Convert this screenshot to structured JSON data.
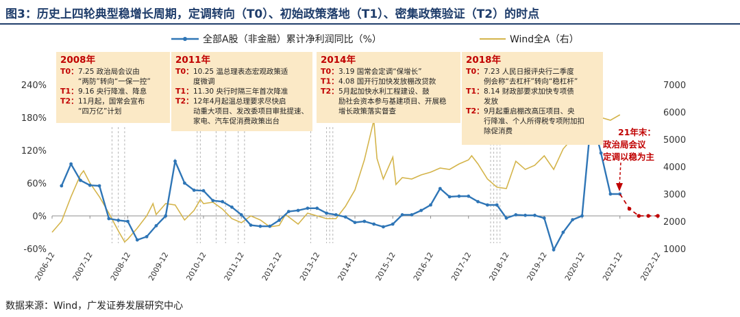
{
  "header": {
    "title": "图3：历史上四轮典型稳增长周期，定调转向（T0）、初始政策落地（T1）、密集政策验证（T2）的时点"
  },
  "footer": {
    "source": "数据来源：Wind，广发证券发展研究中心"
  },
  "colors": {
    "series_profit": "#2e75b6",
    "series_index": "#d4b44a",
    "annotation_bg": "#fbe9c6",
    "annotation_year": "#c00000",
    "forecast": "#c00000",
    "title": "#1f3d6b"
  },
  "chart_data": {
    "type": "line",
    "legend_position": "top",
    "grid": false,
    "x_range": [
      "2006-12",
      "2022-12"
    ],
    "x_ticks": [
      "2006-12",
      "2007-12",
      "2008-12",
      "2009-12",
      "2010-12",
      "2011-12",
      "2012-12",
      "2013-12",
      "2014-12",
      "2015-12",
      "2016-12",
      "2017-12",
      "2018-12",
      "2019-12",
      "2020-12",
      "2021-12",
      "2022-12"
    ],
    "y_left": {
      "min": -60,
      "max": 240,
      "ticks": [
        -60,
        0,
        60,
        120,
        180,
        240
      ],
      "unit": "%"
    },
    "y_right": {
      "min": 1000,
      "max": 7000,
      "ticks": [
        1000,
        2000,
        3000,
        4000,
        5000,
        6000,
        7000
      ]
    },
    "series": [
      {
        "name": "全部A股（非金融）累计净利润同比（%）",
        "axis": "left",
        "points": [
          [
            "2007-03",
            55
          ],
          [
            "2007-06",
            95
          ],
          [
            "2007-09",
            65
          ],
          [
            "2007-12",
            56
          ],
          [
            "2008-03",
            55
          ],
          [
            "2008-06",
            -5
          ],
          [
            "2008-09",
            -8
          ],
          [
            "2008-12",
            -10
          ],
          [
            "2009-03",
            -44
          ],
          [
            "2009-06",
            -38
          ],
          [
            "2009-09",
            -18
          ],
          [
            "2009-12",
            0
          ],
          [
            "2010-03",
            100
          ],
          [
            "2010-06",
            60
          ],
          [
            "2010-09",
            47
          ],
          [
            "2010-12",
            46
          ],
          [
            "2011-03",
            28
          ],
          [
            "2011-06",
            26
          ],
          [
            "2011-09",
            16
          ],
          [
            "2011-12",
            2
          ],
          [
            "2012-03",
            -17
          ],
          [
            "2012-06",
            -19
          ],
          [
            "2012-09",
            -19
          ],
          [
            "2012-12",
            -8
          ],
          [
            "2013-03",
            8
          ],
          [
            "2013-06",
            10
          ],
          [
            "2013-09",
            14
          ],
          [
            "2013-12",
            14
          ],
          [
            "2014-03",
            5
          ],
          [
            "2014-06",
            2
          ],
          [
            "2014-09",
            -2
          ],
          [
            "2014-12",
            -12
          ],
          [
            "2015-03",
            -10
          ],
          [
            "2015-06",
            -15
          ],
          [
            "2015-09",
            -20
          ],
          [
            "2015-12",
            -15
          ],
          [
            "2016-03",
            2
          ],
          [
            "2016-06",
            2
          ],
          [
            "2016-09",
            10
          ],
          [
            "2016-12",
            20
          ],
          [
            "2017-03",
            50
          ],
          [
            "2017-06",
            35
          ],
          [
            "2017-09",
            36
          ],
          [
            "2017-12",
            36
          ],
          [
            "2018-03",
            26
          ],
          [
            "2018-06",
            20
          ],
          [
            "2018-09",
            20
          ],
          [
            "2018-12",
            -4
          ],
          [
            "2019-03",
            2
          ],
          [
            "2019-06",
            1
          ],
          [
            "2019-09",
            1
          ],
          [
            "2019-12",
            -4
          ],
          [
            "2020-03",
            -62
          ],
          [
            "2020-06",
            -30
          ],
          [
            "2020-09",
            -7
          ],
          [
            "2020-12",
            0
          ],
          [
            "2021-03",
            185
          ],
          [
            "2021-06",
            115
          ],
          [
            "2021-09",
            40
          ],
          [
            "2021-12",
            40
          ]
        ]
      },
      {
        "name": "Wind全A（右）",
        "axis": "right",
        "points": [
          [
            "2006-12",
            1600
          ],
          [
            "2007-03",
            2000
          ],
          [
            "2007-06",
            2900
          ],
          [
            "2007-09",
            3700
          ],
          [
            "2007-10",
            3850
          ],
          [
            "2007-12",
            3400
          ],
          [
            "2008-03",
            2900
          ],
          [
            "2008-06",
            2300
          ],
          [
            "2008-09",
            1650
          ],
          [
            "2008-11",
            1250
          ],
          [
            "2008-12",
            1350
          ],
          [
            "2009-03",
            1750
          ],
          [
            "2009-06",
            2200
          ],
          [
            "2009-08",
            2650
          ],
          [
            "2009-09",
            2250
          ],
          [
            "2009-12",
            2650
          ],
          [
            "2010-03",
            2600
          ],
          [
            "2010-06",
            2050
          ],
          [
            "2010-09",
            2400
          ],
          [
            "2010-11",
            2800
          ],
          [
            "2010-12",
            2650
          ],
          [
            "2011-03",
            2700
          ],
          [
            "2011-06",
            2450
          ],
          [
            "2011-09",
            2100
          ],
          [
            "2011-12",
            1950
          ],
          [
            "2012-03",
            2200
          ],
          [
            "2012-06",
            2050
          ],
          [
            "2012-09",
            1800
          ],
          [
            "2012-12",
            1850
          ],
          [
            "2013-02",
            2250
          ],
          [
            "2013-06",
            1900
          ],
          [
            "2013-09",
            2300
          ],
          [
            "2013-12",
            2200
          ],
          [
            "2014-03",
            2100
          ],
          [
            "2014-06",
            2100
          ],
          [
            "2014-09",
            2550
          ],
          [
            "2014-12",
            3150
          ],
          [
            "2015-03",
            4250
          ],
          [
            "2015-06",
            5700
          ],
          [
            "2015-07",
            4300
          ],
          [
            "2015-09",
            3550
          ],
          [
            "2015-12",
            4350
          ],
          [
            "2016-01",
            3350
          ],
          [
            "2016-03",
            3600
          ],
          [
            "2016-06",
            3550
          ],
          [
            "2016-09",
            3700
          ],
          [
            "2016-12",
            3800
          ],
          [
            "2017-03",
            3950
          ],
          [
            "2017-06",
            3900
          ],
          [
            "2017-09",
            4100
          ],
          [
            "2017-12",
            4250
          ],
          [
            "2018-01",
            4400
          ],
          [
            "2018-03",
            4100
          ],
          [
            "2018-06",
            3550
          ],
          [
            "2018-09",
            3250
          ],
          [
            "2018-12",
            3200
          ],
          [
            "2019-03",
            4200
          ],
          [
            "2019-06",
            3900
          ],
          [
            "2019-09",
            4050
          ],
          [
            "2019-12",
            4400
          ],
          [
            "2020-03",
            3900
          ],
          [
            "2020-06",
            4650
          ],
          [
            "2020-09",
            5050
          ],
          [
            "2020-12",
            5400
          ],
          [
            "2021-02",
            5700
          ],
          [
            "2021-03",
            5450
          ],
          [
            "2021-06",
            5800
          ],
          [
            "2021-09",
            5700
          ],
          [
            "2021-12",
            5900
          ]
        ]
      },
      {
        "name": "forecast",
        "axis": "left",
        "style": "dashed",
        "points": [
          [
            "2021-12",
            40
          ],
          [
            "2022-03",
            13
          ],
          [
            "2022-06",
            0
          ],
          [
            "2022-09",
            0
          ],
          [
            "2022-12",
            0
          ]
        ]
      }
    ],
    "policy_dates": [
      "2008-07",
      "2008-09",
      "2008-11",
      "2010-10",
      "2010-11",
      "2011-04",
      "2011-07",
      "2011-11",
      "2012-01",
      "2013-10",
      "2014-03",
      "2014-04",
      "2014-05",
      "2018-07",
      "2018-08",
      "2018-09",
      "2018-10"
    ],
    "annotations": [
      {
        "year": "2008年",
        "lines": [
          [
            "T0：",
            "7.25 政治局会议由"
          ],
          [
            "",
            "“两防”转向“一保一控”"
          ],
          [
            "T1：",
            "9.16 央行降准、降息"
          ],
          [
            "T2：",
            "11月起，国常会宣布"
          ],
          [
            "",
            "“四万亿”计划"
          ]
        ]
      },
      {
        "year": "2011年",
        "lines": [
          [
            "T0：",
            "10.25 温总理表态宏观政策适"
          ],
          [
            "",
            "度微调"
          ],
          [
            "T1：",
            "11.30 央行时隔三年首次降准"
          ],
          [
            "T2：",
            "12年4月起温总理要求尽快启"
          ],
          [
            "",
            "动重大项目、发改委项目审批提速、"
          ],
          [
            "",
            "家电、汽车促消费政策出台"
          ]
        ]
      },
      {
        "year": "2014年",
        "lines": [
          [
            "T0：",
            "3.19 国常会定调“保增长”"
          ],
          [
            "T1：",
            "4.08 国开行加快发放棚改贷款"
          ],
          [
            "T2：",
            "5月起加快水利工程建设、鼓"
          ],
          [
            "",
            "励社会资本参与基建项目、开展稳"
          ],
          [
            "",
            "增长政策落实督查"
          ]
        ]
      },
      {
        "year": "2018年",
        "lines": [
          [
            "T0：",
            "7.23 人民日报评央行二季度"
          ],
          [
            "",
            "例会称“去杠杆”转向“稳杠杆”"
          ],
          [
            "T1：",
            "8.14 财政部要求加快专项债"
          ],
          [
            "",
            "发放"
          ],
          [
            "T2：",
            "9月起重启棚改高压项目、央"
          ],
          [
            "",
            "行降准、个人所得税专项附加扣"
          ],
          [
            "",
            "除促消费"
          ]
        ]
      }
    ],
    "callout": [
      "21年末：",
      "政治局会议",
      "定调以稳为主"
    ]
  }
}
